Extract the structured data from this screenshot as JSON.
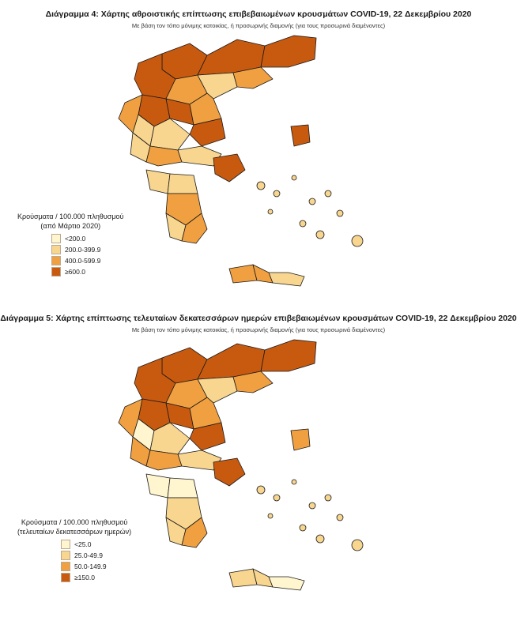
{
  "map1": {
    "title": "Διάγραμμα 4: Χάρτης αθροιστικής επίπτωσης επιβεβαιωμένων κρουσμάτων COVID-19, 22 Δεκεμβρίου 2020",
    "subtitle": "Με βάση τον τόπο μόνιμης κατοικίας, ή προσωρινής διαμονής (για τους προσωρινά διαμένοντες)",
    "legend_title_1": "Κρούσματα / 100.000 πληθυσμού",
    "legend_title_2": "(από Μάρτιο 2020)",
    "legend": [
      {
        "label": "<200.0",
        "color": "#fff6d0"
      },
      {
        "label": "200.0-399.9",
        "color": "#f8d690"
      },
      {
        "label": "400.0-599.9",
        "color": "#f0a040"
      },
      {
        "label": "≥600.0",
        "color": "#c85a10"
      }
    ]
  },
  "map2": {
    "title": "Διάγραμμα 5: Χάρτης επίπτωσης τελευταίων δεκατεσσάρων ημερών επιβεβαιωμένων κρουσμάτων COVID-19, 22 Δεκεμβρίου 2020",
    "subtitle": "Με βάση τον τόπο μόνιμης κατοικίας, ή προσωρινής διαμονής (για τους προσωρινά διαμένοντες)",
    "legend_title_1": "Κρούσματα / 100.000 πληθυσμού",
    "legend_title_2": "(τελευταίων δεκατεσσάρων ημερών)",
    "legend": [
      {
        "label": "<25.0",
        "color": "#fff6d0"
      },
      {
        "label": "25.0-49.9",
        "color": "#f8d690"
      },
      {
        "label": "50.0-149.9",
        "color": "#f0a040"
      },
      {
        "label": "≥150.0",
        "color": "#c85a10"
      }
    ]
  },
  "colors": {
    "c1": "#fff6d0",
    "c2": "#f8d690",
    "c3": "#f0a040",
    "c4": "#c85a10"
  },
  "map1_region_classes": [
    "c4",
    "c4",
    "c4",
    "c4",
    "c3",
    "c2",
    "c3",
    "c4",
    "c4",
    "c3",
    "c4",
    "c3",
    "c2",
    "c2",
    "c2",
    "c3",
    "c2",
    "c2",
    "c2",
    "c3",
    "c4",
    "c2",
    "c3",
    "c3",
    "c3",
    "c2",
    "c4"
  ],
  "map2_region_classes": [
    "c4",
    "c4",
    "c4",
    "c4",
    "c3",
    "c2",
    "c3",
    "c4",
    "c4",
    "c3",
    "c4",
    "c3",
    "c1",
    "c2",
    "c3",
    "c3",
    "c2",
    "c1",
    "c1",
    "c2",
    "c4",
    "c2",
    "c3",
    "c2",
    "c2",
    "c1",
    "c3"
  ]
}
